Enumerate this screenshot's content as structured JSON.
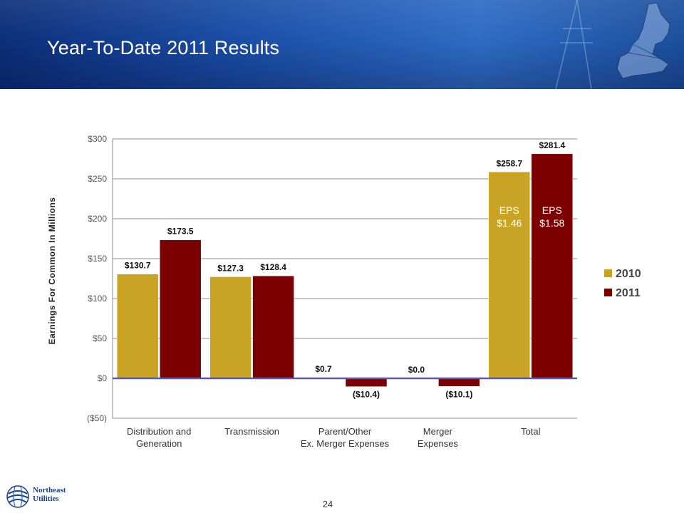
{
  "slide": {
    "title": "Year-To-Date 2011 Results",
    "page_number": "24"
  },
  "logo": {
    "line1": "Northeast",
    "line2": "Utilities"
  },
  "colors": {
    "series_2010": "#c9a323",
    "series_2011": "#7b0000",
    "zero_line": "#5a5aa8",
    "grid": "#8c8c8c",
    "header_blue": "#1a4ea6"
  },
  "chart_data": {
    "type": "bar",
    "title": "",
    "ylabel": "Earnings For Common In Millions",
    "xlabel": "",
    "ylim": [
      -50,
      300
    ],
    "yticks": [
      -50,
      0,
      50,
      100,
      150,
      200,
      250,
      300
    ],
    "ytick_labels": [
      "($50)",
      "$0",
      "$50",
      "$100",
      "$150",
      "$200",
      "$250",
      "$300"
    ],
    "grid": "horizontal",
    "legend_position": "right",
    "categories": [
      [
        "Distribution and",
        "Generation"
      ],
      [
        "Transmission"
      ],
      [
        "Parent/Other",
        "Ex. Merger Expenses"
      ],
      [
        "Merger",
        "Expenses"
      ],
      [
        "Total"
      ]
    ],
    "series": [
      {
        "name": "2010",
        "values": [
          130.7,
          127.3,
          0.7,
          0.0,
          258.7
        ],
        "labels": [
          "$130.7",
          "$127.3",
          "$0.7",
          "$0.0",
          "$258.7"
        ]
      },
      {
        "name": "2011",
        "values": [
          173.5,
          128.4,
          -10.4,
          -10.1,
          281.4
        ],
        "labels": [
          "$173.5",
          "$128.4",
          "($10.4)",
          "($10.1)",
          "$281.4"
        ]
      }
    ],
    "annotations": [
      {
        "series": 0,
        "category": 4,
        "lines": [
          "EPS",
          "$1.46"
        ]
      },
      {
        "series": 1,
        "category": 4,
        "lines": [
          "EPS",
          "$1.58"
        ]
      }
    ]
  }
}
